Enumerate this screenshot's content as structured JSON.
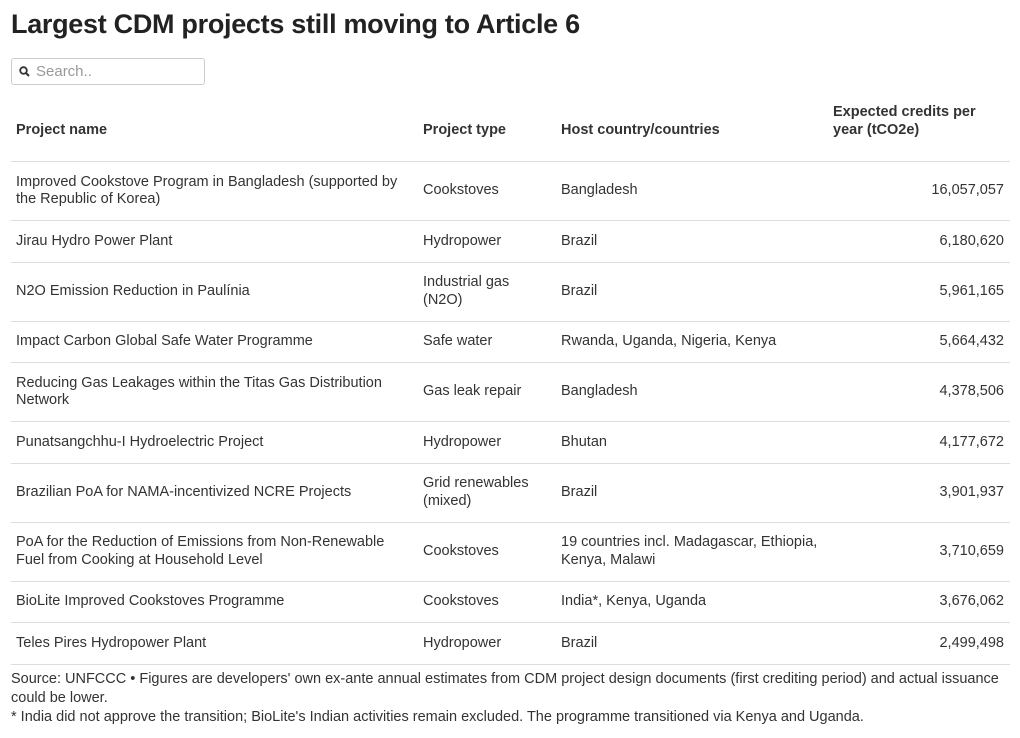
{
  "title": "Largest CDM projects still moving to Article 6",
  "search": {
    "placeholder": "Search.."
  },
  "table": {
    "header": [
      "Project name",
      "Project type",
      "Host country/countries",
      "Expected credits per year (tCO2e)"
    ],
    "rows": [
      [
        "Improved Cookstove Program in Bangladesh (supported by the Republic of Korea)",
        "Cookstoves",
        "Bangladesh",
        "16,057,057"
      ],
      [
        "Jirau Hydro Power Plant",
        "Hydropower",
        "Brazil",
        "6,180,620"
      ],
      [
        "N2O Emission Reduction in Paulínia",
        "Industrial gas (N2O)",
        "Brazil",
        "5,961,165"
      ],
      [
        "Impact Carbon Global Safe Water Programme",
        "Safe water",
        "Rwanda, Uganda, Nigeria, Kenya",
        "5,664,432"
      ],
      [
        "Reducing Gas Leakages within the Titas Gas Distribution Network",
        "Gas leak repair",
        "Bangladesh",
        "4,378,506"
      ],
      [
        "Punatsangchhu-I Hydroelectric Project",
        "Hydropower",
        "Bhutan",
        "4,177,672"
      ],
      [
        "Brazilian PoA for NAMA-incentivized NCRE Projects",
        "Grid renewables (mixed)",
        "Brazil",
        "3,901,937"
      ],
      [
        "PoA for the Reduction of Emissions from Non-Renewable Fuel from Cooking at Household Level",
        "Cookstoves",
        "19 countries incl. Madagascar, Ethiopia, Kenya, Malawi",
        "3,710,659"
      ],
      [
        "BioLite Improved Cookstoves Programme",
        "Cookstoves",
        "India*, Kenya, Uganda",
        "3,676,062"
      ],
      [
        "Teles Pires Hydropower Plant",
        "Hydropower",
        "Brazil",
        "2,499,498"
      ]
    ]
  },
  "notes": [
    "Source: UNFCCC • Figures are developers' own ex-ante annual estimates from CDM project design documents (first crediting period) and actual issuance could be lower.",
    "* India did not approve the transition; BioLite's Indian activities remain excluded. The programme transitioned via Kenya and Uganda."
  ]
}
